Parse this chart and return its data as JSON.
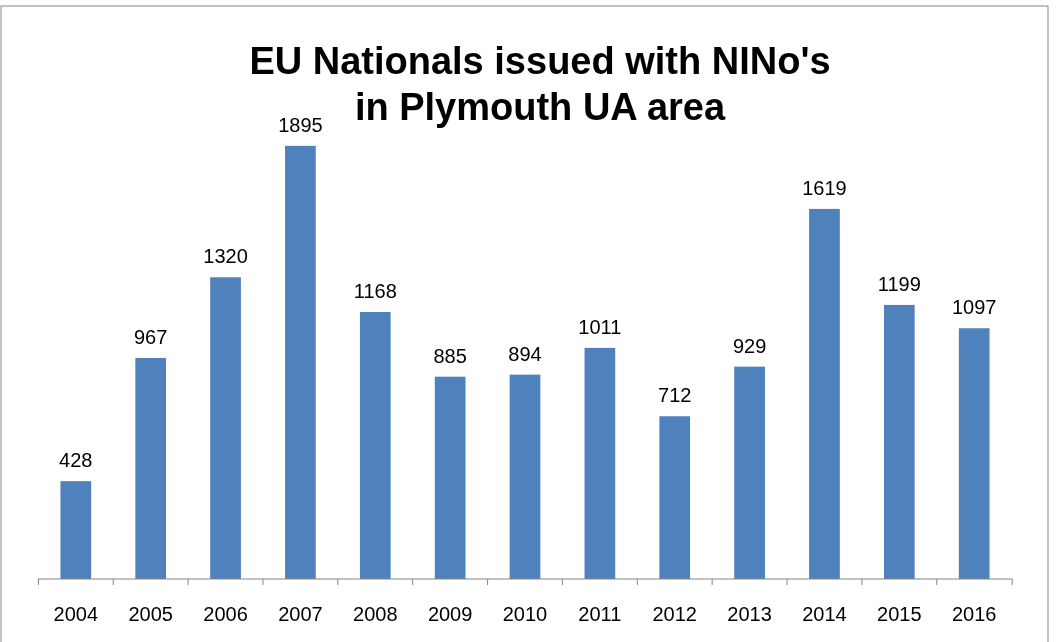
{
  "chart_data": {
    "type": "bar",
    "title": "EU Nationals issued with NINo's in Plymouth UA area",
    "categories": [
      "2004",
      "2005",
      "2006",
      "2007",
      "2008",
      "2009",
      "2010",
      "2011",
      "2012",
      "2013",
      "2014",
      "2015",
      "2016"
    ],
    "values": [
      428,
      967,
      1320,
      1895,
      1168,
      885,
      894,
      1011,
      712,
      929,
      1619,
      1199,
      1097
    ],
    "color": "#4f81bd",
    "data_labels": true
  }
}
